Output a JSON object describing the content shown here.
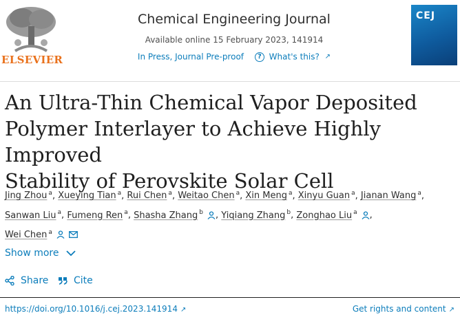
{
  "header": {
    "publisher": "ELSEVIER",
    "journal_title": "Chemical Engineering Journal",
    "availability": "Available online 15 February 2023, 141914",
    "status": "In Press, Journal Pre-proof",
    "help_link": "What's this?",
    "cover_abbr": "CEJ"
  },
  "article": {
    "title_lines": [
      "An Ultra-Thin Chemical Vapor Deposited",
      "Polymer Interlayer to Achieve Highly Improved",
      "Stability of Perovskite Solar Cell"
    ]
  },
  "authors": [
    {
      "name": "Jing Zhou",
      "aff": "a"
    },
    {
      "name": "Xueying Tian",
      "aff": "a"
    },
    {
      "name": "Rui Chen",
      "aff": "a"
    },
    {
      "name": "Weitao Chen",
      "aff": "a"
    },
    {
      "name": "Xin Meng",
      "aff": "a"
    },
    {
      "name": "Xinyu Guan",
      "aff": "a"
    },
    {
      "name": "Jianan Wang",
      "aff": "a"
    },
    {
      "name": "Sanwan Liu",
      "aff": "a"
    },
    {
      "name": "Fumeng Ren",
      "aff": "a"
    },
    {
      "name": "Shasha Zhang",
      "aff": "b"
    },
    {
      "name": "Yiqiang Zhang",
      "aff": "b"
    },
    {
      "name": "Zonghao Liu",
      "aff": "a"
    },
    {
      "name": "Wei Chen",
      "aff": "a"
    }
  ],
  "actions": {
    "show_more": "Show more",
    "share": "Share",
    "cite": "Cite"
  },
  "footer": {
    "doi": "https://doi.org/10.1016/j.cej.2023.141914",
    "rights": "Get rights and content"
  },
  "colors": {
    "link": "#0c7dbb",
    "elsevier_orange": "#e9711c"
  }
}
